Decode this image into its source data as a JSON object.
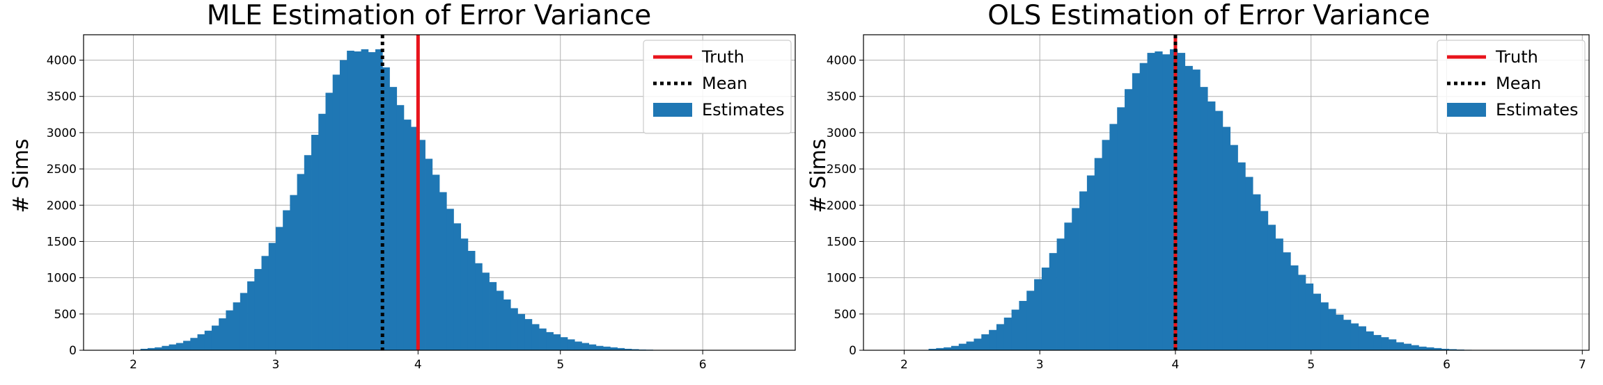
{
  "chart_data": [
    {
      "type": "bar",
      "title": "MLE Estimation of Error Variance",
      "ylabel": "# Sims",
      "xlabel": "",
      "xlim": [
        1.65,
        6.65
      ],
      "ylim": [
        0,
        4350
      ],
      "xticks": [
        2,
        3,
        4,
        5,
        6
      ],
      "yticks": [
        0,
        500,
        1000,
        1500,
        2000,
        2500,
        3000,
        3500,
        4000
      ],
      "grid": true,
      "legend_position": "top-right",
      "legend": [
        "Truth",
        "Mean",
        "Estimates"
      ],
      "truth": 4.0,
      "mean": 3.75,
      "colors": {
        "bars": "#1f77b4",
        "truth": "#e8141c",
        "mean": "#000000",
        "grid": "#b0b0b0"
      },
      "series": [
        {
          "name": "Estimates",
          "bin_start": 2.05,
          "bin_width": 0.05,
          "values": [
            20,
            30,
            40,
            60,
            80,
            100,
            130,
            170,
            220,
            270,
            340,
            440,
            550,
            660,
            790,
            950,
            1120,
            1300,
            1480,
            1700,
            1930,
            2140,
            2430,
            2690,
            2970,
            3260,
            3550,
            3800,
            4000,
            4130,
            4120,
            4150,
            4110,
            4150,
            3900,
            3630,
            3380,
            3180,
            3080,
            2900,
            2640,
            2420,
            2180,
            1950,
            1750,
            1540,
            1370,
            1200,
            1070,
            940,
            820,
            700,
            580,
            500,
            430,
            360,
            300,
            250,
            220,
            180,
            150,
            120,
            100,
            80,
            60,
            50,
            40,
            30,
            20,
            15,
            10,
            8,
            5,
            3,
            2
          ]
        }
      ]
    },
    {
      "type": "bar",
      "title": "OLS Estimation of Error Variance",
      "ylabel": "# Sims",
      "xlabel": "",
      "xlim": [
        1.7,
        7.05
      ],
      "ylim": [
        0,
        4350
      ],
      "xticks": [
        2,
        3,
        4,
        5,
        6,
        7
      ],
      "yticks": [
        0,
        500,
        1000,
        1500,
        2000,
        2500,
        3000,
        3500,
        4000
      ],
      "grid": true,
      "legend_position": "top-right",
      "legend": [
        "Truth",
        "Mean",
        "Estimates"
      ],
      "truth": 4.0,
      "mean": 4.0,
      "colors": {
        "bars": "#1f77b4",
        "truth": "#e8141c",
        "mean": "#000000",
        "grid": "#b0b0b0"
      },
      "series": [
        {
          "name": "Estimates",
          "bin_start": 2.18,
          "bin_width": 0.0556,
          "values": [
            20,
            30,
            40,
            60,
            90,
            120,
            160,
            220,
            280,
            360,
            450,
            560,
            680,
            820,
            980,
            1140,
            1340,
            1540,
            1760,
            1960,
            2190,
            2410,
            2650,
            2900,
            3120,
            3350,
            3600,
            3820,
            3960,
            4100,
            4120,
            4080,
            4150,
            4100,
            3920,
            3870,
            3630,
            3430,
            3300,
            3080,
            2830,
            2590,
            2390,
            2150,
            1920,
            1730,
            1540,
            1350,
            1170,
            1040,
            920,
            780,
            660,
            570,
            490,
            420,
            370,
            330,
            260,
            210,
            180,
            150,
            110,
            90,
            70,
            50,
            40,
            30,
            20,
            15,
            10,
            6,
            4,
            2
          ]
        }
      ]
    }
  ]
}
